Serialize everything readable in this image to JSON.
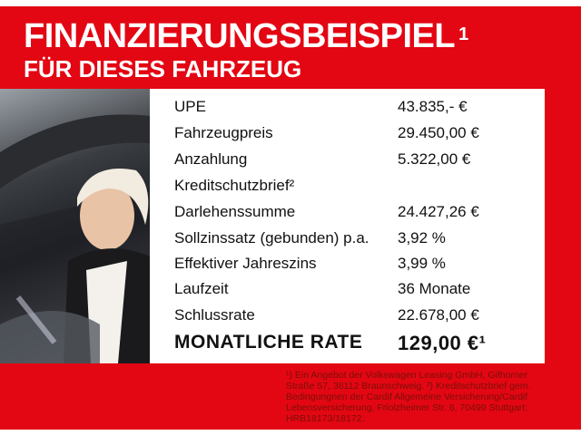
{
  "header": {
    "title": "FINANZIERUNGSBEISPIEL",
    "title_sup": "1",
    "subtitle": "FÜR DIESES FAHRZEUG"
  },
  "colors": {
    "background": "#e30613",
    "text": "#ffffff",
    "footnote": "#7a1008"
  },
  "rows": [
    {
      "label": "UPE",
      "value": "43.835,- €"
    },
    {
      "label": "Fahrzeugpreis",
      "value": "29.450,00 €"
    },
    {
      "label": "Anzahlung",
      "value": "5.322,00 €"
    },
    {
      "label": "Kreditschutzbrief²",
      "value": ""
    },
    {
      "label": "Darlehenssumme",
      "value": "24.427,26 €"
    },
    {
      "label": "Sollzinssatz (gebunden) p.a.",
      "value": "3,92 %"
    },
    {
      "label": "Effektiver Jahreszins",
      "value": "3,99 %"
    },
    {
      "label": "Laufzeit",
      "value": "36 Monate"
    },
    {
      "label": "Schlussrate",
      "value": "22.678,00 €"
    }
  ],
  "rate": {
    "label": "MONATLICHE RATE",
    "value": "129,00 €¹"
  },
  "footnote": "¹) Ein Angebot der Volkswagen Leasing GmbH, Gifhorner Straße 57, 38112 Braunschweig. ²) Kreditschutzbrief gem. Bedingungnen der Cardif Allgemeine Versicherung/Cardif Lebensversicherung, Friolzheimer Str. 6, 70499 Stuttgart; HRB18173/18172.",
  "photo": {
    "subject": "woman-in-car-photo"
  }
}
